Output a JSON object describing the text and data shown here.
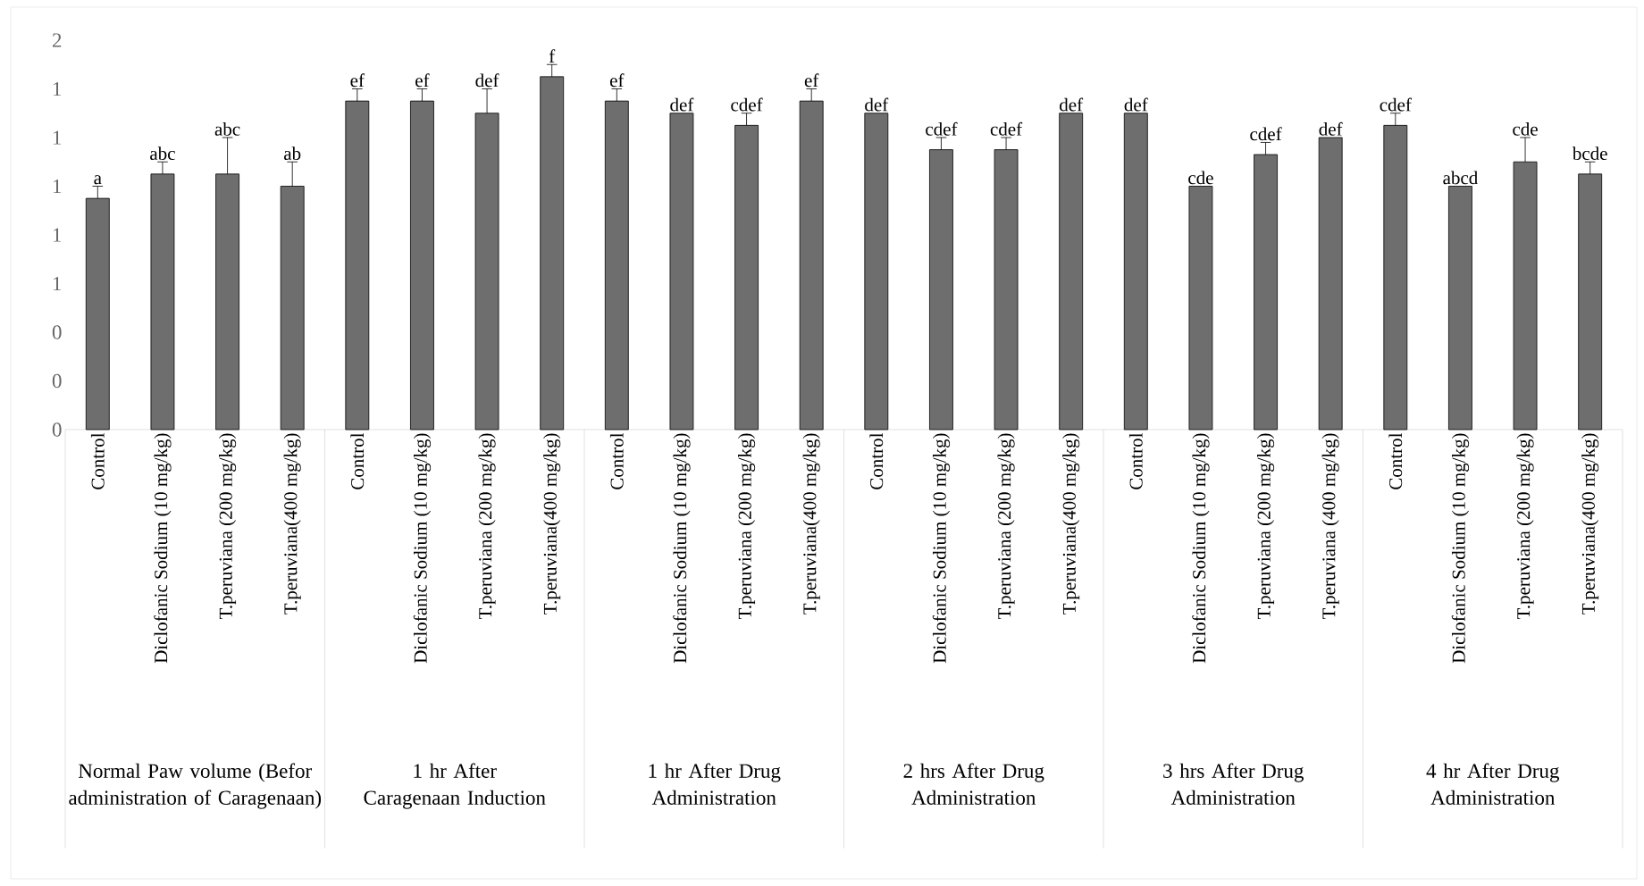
{
  "chart_data": {
    "type": "bar",
    "categories": [
      "Control",
      "Diclofanic Sodium (10 mg/kg)",
      "T.peruviana (200 mg/kg)",
      "T.peruviana(400 mg/kg)",
      "Control",
      "Diclofanic Sodium (10 mg/kg)",
      "T.peruviana (200 mg/kg)",
      "T.peruviana(400 mg/kg)",
      "Control",
      "Diclofanic Sodium (10 mg/kg)",
      "T.peruviana (200 mg/kg)",
      "T.peruviana(400 mg/kg)",
      "Control",
      "Diclofanic Sodium (10 mg/kg)",
      "T.peruviana (200 mg/kg)",
      "T.peruviana(400 mg/kg)",
      "Control",
      "Diclofanic Sodium (10 mg/kg)",
      "T.peruviana (200 mg/kg)",
      "T.peruviana (400 mg/kg)",
      "Control",
      "Diclofanic Sodium (10 mg/kg)",
      "T.peruviana (200 mg/kg)",
      "T.peruviana(400 mg/kg)"
    ],
    "values": [
      0.95,
      1.05,
      1.05,
      1.0,
      1.35,
      1.35,
      1.3,
      1.45,
      1.35,
      1.3,
      1.25,
      1.35,
      1.3,
      1.15,
      1.15,
      1.3,
      1.3,
      1.0,
      1.13,
      1.2,
      1.25,
      1.0,
      1.1,
      1.05
    ],
    "errors": [
      0.05,
      0.05,
      0.15,
      0.1,
      0.05,
      0.05,
      0.1,
      0.05,
      0.05,
      null,
      0.05,
      0.05,
      null,
      0.05,
      0.05,
      null,
      null,
      null,
      0.05,
      null,
      0.05,
      null,
      0.1,
      0.05
    ],
    "value_labels": [
      "a",
      "abc",
      "abc",
      "ab",
      "ef",
      "ef",
      "def",
      "f",
      "ef",
      "def",
      "cdef",
      "ef",
      "def",
      "cdef",
      "cdef",
      "def",
      "def",
      "cde",
      "cdef",
      "def",
      "cdef",
      "abcd",
      "cde",
      "bcde"
    ],
    "color": "#6e6e6e",
    "ylim": [
      0,
      1.6
    ],
    "yticks": [
      {
        "value": 0,
        "label": "0"
      },
      {
        "value": 0.2,
        "label": "0"
      },
      {
        "value": 0.4,
        "label": "0"
      },
      {
        "value": 0.6,
        "label": "1"
      },
      {
        "value": 0.8,
        "label": "1"
      },
      {
        "value": 1.0,
        "label": "1"
      },
      {
        "value": 1.2,
        "label": "1"
      },
      {
        "value": 1.4,
        "label": "1"
      },
      {
        "value": 1.6,
        "label": "2"
      }
    ],
    "annotations": [
      "Normal Paw volume (Befor administration of Caragenaan)",
      "1 hr After Caragenaan Induction",
      "1 hr After Drug Administration",
      "2 hrs After Drug Administration",
      "3 hrs After Drug Administration",
      "4 hr After Drug Administration"
    ],
    "grid": false
  }
}
